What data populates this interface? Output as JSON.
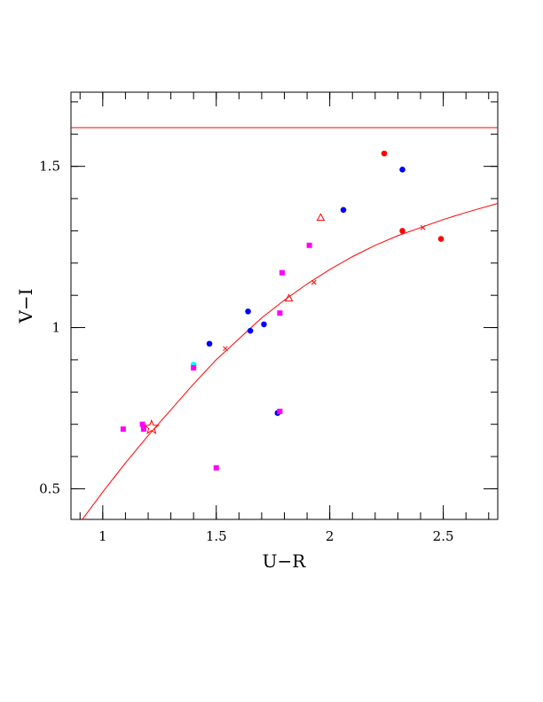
{
  "chart_data": {
    "type": "scatter",
    "xlabel": "U−R",
    "ylabel": "V−I",
    "xlim": [
      0.86,
      2.74
    ],
    "ylim": [
      0.405,
      1.73
    ],
    "x_ticks": [
      {
        "value": 1,
        "label": "1"
      },
      {
        "value": 1.5,
        "label": "1.5"
      },
      {
        "value": 2,
        "label": "2"
      },
      {
        "value": 2.5,
        "label": "2.5"
      }
    ],
    "y_ticks": [
      {
        "value": 0.5,
        "label": "0.5"
      },
      {
        "value": 1,
        "label": "1"
      },
      {
        "value": 1.5,
        "label": "1.5"
      }
    ],
    "x_minor_step": 0.1,
    "y_minor_step": 0.1,
    "grid": false,
    "colors": {
      "blue": "#0000ff",
      "red": "#ff0000",
      "magenta": "#ff00ff",
      "cyan": "#00ffff",
      "line": "#ff0000"
    },
    "horizontal_line": {
      "y": 1.62,
      "color": "#ff0000"
    },
    "curve": {
      "color": "#ff0000",
      "points": [
        [
          0.91,
          0.405
        ],
        [
          1.0,
          0.49
        ],
        [
          1.1,
          0.58
        ],
        [
          1.2,
          0.665
        ],
        [
          1.3,
          0.745
        ],
        [
          1.4,
          0.825
        ],
        [
          1.5,
          0.9
        ],
        [
          1.6,
          0.965
        ],
        [
          1.7,
          1.03
        ],
        [
          1.8,
          1.085
        ],
        [
          1.9,
          1.135
        ],
        [
          2.0,
          1.18
        ],
        [
          2.1,
          1.22
        ],
        [
          2.2,
          1.255
        ],
        [
          2.3,
          1.285
        ],
        [
          2.4,
          1.31
        ],
        [
          2.5,
          1.335
        ],
        [
          2.6,
          1.357
        ],
        [
          2.74,
          1.385
        ]
      ],
      "cross_markers": [
        [
          1.54,
          0.935
        ],
        [
          1.93,
          1.14
        ],
        [
          2.41,
          1.31
        ]
      ]
    },
    "series": [
      {
        "marker": "circle",
        "color": "blue",
        "points": [
          [
            1.47,
            0.95
          ],
          [
            1.64,
            1.05
          ],
          [
            1.65,
            0.99
          ],
          [
            1.71,
            1.01
          ],
          [
            1.77,
            0.735
          ],
          [
            2.06,
            1.365
          ],
          [
            2.32,
            1.49
          ]
        ]
      },
      {
        "marker": "circle",
        "color": "red",
        "points": [
          [
            2.24,
            1.54
          ],
          [
            2.32,
            1.3
          ],
          [
            2.49,
            1.275
          ]
        ]
      },
      {
        "marker": "circle",
        "color": "cyan",
        "points": [
          [
            1.4,
            0.885
          ]
        ]
      },
      {
        "marker": "square",
        "color": "magenta",
        "points": [
          [
            1.09,
            0.685
          ],
          [
            1.175,
            0.7
          ],
          [
            1.18,
            0.685
          ],
          [
            1.4,
            0.875
          ],
          [
            1.5,
            0.565
          ],
          [
            1.78,
            0.74
          ],
          [
            1.78,
            1.045
          ],
          [
            1.79,
            1.17
          ],
          [
            1.91,
            1.255
          ]
        ]
      },
      {
        "marker": "triangle",
        "color": "red",
        "points": [
          [
            1.82,
            1.09
          ],
          [
            1.96,
            1.34
          ]
        ]
      },
      {
        "marker": "star",
        "color": "red",
        "points": [
          [
            1.215,
            0.69
          ]
        ]
      }
    ]
  }
}
